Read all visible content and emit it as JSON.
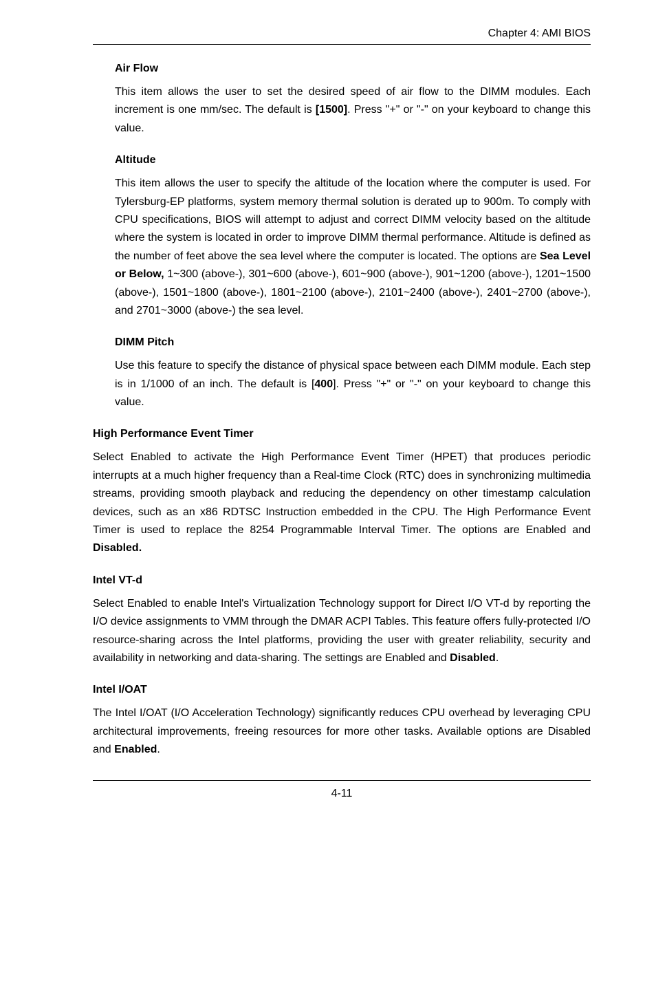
{
  "header": {
    "chapter_label": "Chapter 4: AMI BIOS"
  },
  "sections": {
    "air_flow": {
      "heading": "Air Flow",
      "body_pre": "This item allows the user to set the desired speed of air flow to the DIMM modules. Each increment is one mm/sec. The default is ",
      "bold_default": "[1500]",
      "body_post": ". Press \"+\" or \"-\" on your keyboard to change this value."
    },
    "altitude": {
      "heading": "Altitude",
      "body_pre": "This item allows the user to specify the altitude of the location where the computer is used. For Tylersburg-EP platforms, system memory thermal solution is derated up to 900m. To comply with CPU specifications, BIOS will attempt to adjust and correct DIMM velocity based on the altitude where the system is located in order to improve DIMM thermal performance. Altitude is defined as the number of feet above the sea level where the computer is located. The options are ",
      "bold_option": "Sea Level or Below,",
      "body_post": " 1~300 (above-), 301~600 (above-), 601~900 (above-), 901~1200 (above-), 1201~1500 (above-), 1501~1800 (above-), 1801~2100 (above-), 2101~2400 (above-), 2401~2700 (above-), and  2701~3000 (above-) the sea level."
    },
    "dimm_pitch": {
      "heading": "DIMM Pitch",
      "body_pre": "Use this feature to specify the distance of physical space between each DIMM module.  Each step is in 1/1000 of an inch. The default is [",
      "bold_default": "400",
      "body_post": "]. Press \"+\" or \"-\" on your keyboard to change this value."
    },
    "hpet": {
      "heading": "High Performance Event Timer",
      "body_pre": "Select Enabled to activate the High Performance Event Timer (HPET) that produces periodic interrupts at a much higher frequency than a Real-time Clock (RTC) does in synchronizing multimedia streams, providing smooth playback and reducing the dependency on other timestamp calculation devices, such as an x86 RDTSC Instruction embedded in the CPU. The High Performance Event Timer is used to replace the 8254 Programmable Interval Timer. The options are Enabled and ",
      "bold_option": "Disabled."
    },
    "intel_vtd": {
      "heading": "Intel VT-d",
      "body_pre": "Select Enabled to enable Intel's Virtualization Technology support for Direct I/O VT-d by reporting the I/O device assignments to VMM through the DMAR ACPI Tables. This feature offers fully-protected I/O resource-sharing across the Intel platforms, providing the user with greater reliability, security and availability in networking and data-sharing. The settings are Enabled and ",
      "bold_option": "Disabled",
      "body_post": "."
    },
    "intel_ioat": {
      "heading": "Intel I/OAT",
      "body_pre": "The Intel I/OAT (I/O Acceleration Technology) significantly reduces CPU overhead by leveraging CPU architectural improvements, freeing resources for more other tasks.  Available options are Disabled and ",
      "bold_option": "Enabled",
      "body_post": "."
    }
  },
  "footer": {
    "page_number": "4-11"
  }
}
